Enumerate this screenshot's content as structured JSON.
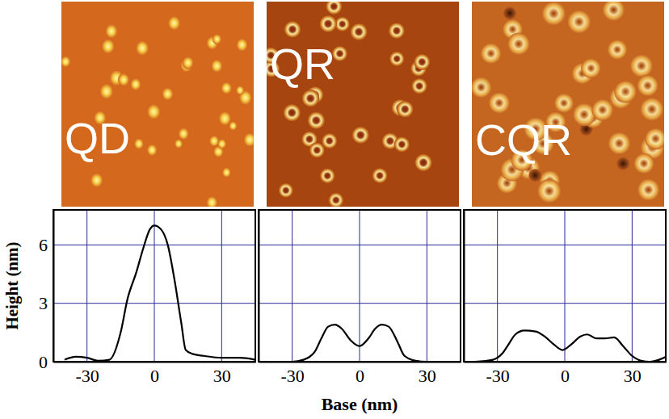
{
  "chart_data": [
    {
      "type": "line",
      "title": "QD",
      "y_label": "Height (nm)",
      "x": [
        -40,
        -35,
        -30,
        -25,
        -20,
        -15,
        -12,
        -8,
        -5,
        -2,
        0,
        3,
        6,
        9,
        12,
        14,
        17,
        22,
        30,
        38,
        45
      ],
      "values": [
        0.1,
        0.25,
        0.2,
        0.05,
        0.1,
        1.5,
        3.2,
        4.6,
        5.8,
        6.8,
        7.0,
        6.8,
        6.0,
        4.2,
        2.0,
        0.6,
        0.4,
        0.3,
        0.2,
        0.2,
        0.1
      ],
      "color": "#000000",
      "xlim": [
        -45,
        45
      ],
      "ylim": [
        0,
        7.8
      ],
      "xticks": [
        -30,
        0,
        30
      ],
      "yticks": [
        0,
        3,
        6
      ],
      "grid": true
    },
    {
      "type": "line",
      "title": "QR",
      "x_label": "Base (nm)",
      "x": [
        -40,
        -30,
        -25,
        -20,
        -17,
        -14,
        -11,
        -8,
        -4,
        0,
        4,
        7,
        10,
        13,
        17,
        20,
        25,
        30,
        45
      ],
      "values": [
        0,
        0,
        0.1,
        0.5,
        1.2,
        1.8,
        1.9,
        1.7,
        1.1,
        0.8,
        1.2,
        1.7,
        1.9,
        1.8,
        1.0,
        0.3,
        0.05,
        0,
        0
      ],
      "color": "#000000",
      "xlim": [
        -45,
        45
      ],
      "ylim": [
        0,
        7.8
      ],
      "xticks": [
        -30,
        0,
        30
      ],
      "yticks": [
        0,
        3,
        6
      ],
      "grid": true,
      "tick_labels": "x"
    },
    {
      "type": "line",
      "title": "CQR",
      "x": [
        -40,
        -32,
        -28,
        -25,
        -22,
        -18,
        -13,
        -9,
        -5,
        -1,
        3,
        7,
        10,
        14,
        18,
        22,
        26,
        30,
        34,
        38,
        42,
        45
      ],
      "values": [
        0,
        0.1,
        0.4,
        0.9,
        1.4,
        1.6,
        1.55,
        1.3,
        0.9,
        0.6,
        0.9,
        1.3,
        1.4,
        1.2,
        1.2,
        1.25,
        0.8,
        0.3,
        0.05,
        0,
        0.1,
        0.25
      ],
      "color": "#000000",
      "xlim": [
        -45,
        45
      ],
      "ylim": [
        0,
        7.8
      ],
      "xticks": [
        -30,
        0,
        30
      ],
      "yticks": [
        0,
        3,
        6
      ],
      "grid": true,
      "tick_labels": "x"
    }
  ]
}
